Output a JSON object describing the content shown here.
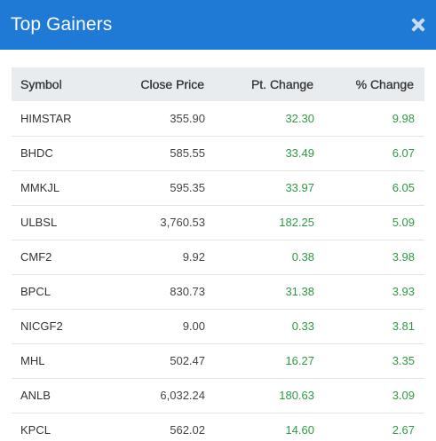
{
  "dialog": {
    "title": "Top Gainers",
    "accent_color": "#1f7ad6",
    "positive_color": "#2e9a44",
    "close_icon": "close-icon"
  },
  "table": {
    "headers": [
      "Symbol",
      "Close Price",
      "Pt. Change",
      "% Change"
    ],
    "rows": [
      {
        "symbol": "HIMSTAR",
        "close_price": "355.90",
        "pt_change": "32.30",
        "pct_change": "9.98"
      },
      {
        "symbol": "BHDC",
        "close_price": "585.55",
        "pt_change": "33.49",
        "pct_change": "6.07"
      },
      {
        "symbol": "MMKJL",
        "close_price": "595.35",
        "pt_change": "33.97",
        "pct_change": "6.05"
      },
      {
        "symbol": "ULBSL",
        "close_price": "3,760.53",
        "pt_change": "182.25",
        "pct_change": "5.09"
      },
      {
        "symbol": "CMF2",
        "close_price": "9.92",
        "pt_change": "0.38",
        "pct_change": "3.98"
      },
      {
        "symbol": "BPCL",
        "close_price": "830.73",
        "pt_change": "31.38",
        "pct_change": "3.93"
      },
      {
        "symbol": "NICGF2",
        "close_price": "9.00",
        "pt_change": "0.33",
        "pct_change": "3.81"
      },
      {
        "symbol": "MHL",
        "close_price": "502.47",
        "pt_change": "16.27",
        "pct_change": "3.35"
      },
      {
        "symbol": "ANLB",
        "close_price": "6,032.24",
        "pt_change": "180.63",
        "pct_change": "3.09"
      },
      {
        "symbol": "KPCL",
        "close_price": "562.02",
        "pt_change": "14.60",
        "pct_change": "2.67"
      }
    ]
  }
}
